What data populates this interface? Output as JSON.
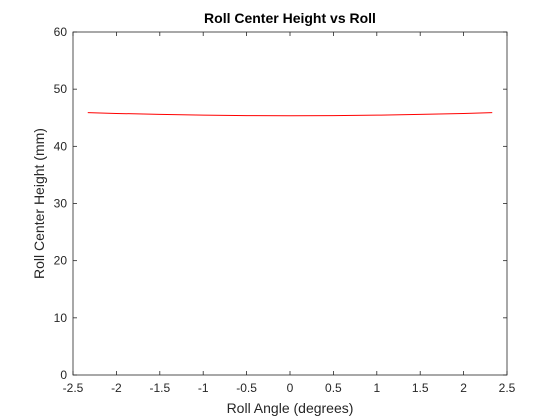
{
  "chart_data": {
    "type": "line",
    "title": "Roll Center Height vs Roll",
    "xlabel": "Roll Angle (degrees)",
    "ylabel": "Roll Center Height (mm)",
    "xlim": [
      -2.5,
      2.5
    ],
    "ylim": [
      0,
      60
    ],
    "xticks": [
      -2.5,
      -2,
      -1.5,
      -1,
      -0.5,
      0,
      0.5,
      1,
      1.5,
      2,
      2.5
    ],
    "xtick_labels": [
      "-2.5",
      "-2",
      "-1.5",
      "-1",
      "-0.5",
      "0",
      "0.5",
      "1",
      "1.5",
      "2",
      "2.5"
    ],
    "yticks": [
      0,
      10,
      20,
      30,
      40,
      50,
      60
    ],
    "ytick_labels": [
      "0",
      "10",
      "20",
      "30",
      "40",
      "50",
      "60"
    ],
    "grid": false,
    "series": [
      {
        "color": "#ff0000",
        "x": [
          -2.33,
          -2.0,
          -1.5,
          -1.0,
          -0.5,
          0.0,
          0.5,
          1.0,
          1.5,
          2.0,
          2.33
        ],
        "y": [
          45.9,
          45.75,
          45.6,
          45.45,
          45.38,
          45.35,
          45.38,
          45.45,
          45.6,
          45.75,
          45.9
        ]
      }
    ]
  }
}
